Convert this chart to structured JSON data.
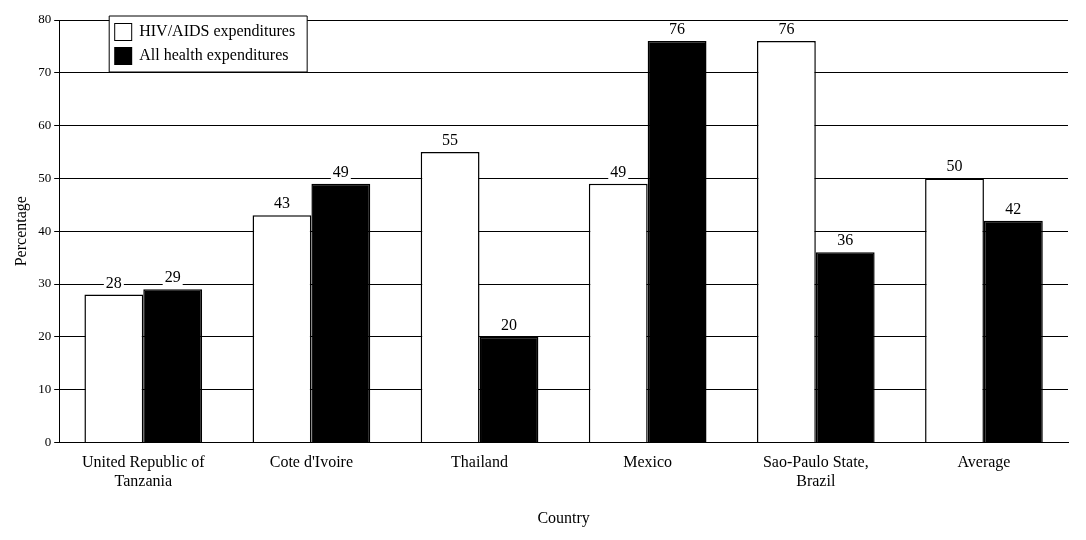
{
  "chart_data": {
    "type": "bar",
    "xlabel": "Country",
    "ylabel": "Percentage",
    "categories": [
      "United Republic of Tanzania",
      "Cote d'Ivoire",
      "Thailand",
      "Mexico",
      "Sao-Paulo State, Brazil",
      "Average"
    ],
    "series": [
      {
        "name": "HIV/AIDS expenditures",
        "color": "#ffffff",
        "values": [
          28,
          43,
          55,
          49,
          76,
          50
        ]
      },
      {
        "name": "All health expenditures",
        "color": "#000000",
        "values": [
          29,
          49,
          20,
          76,
          36,
          42
        ]
      }
    ],
    "ylim": [
      0,
      80
    ],
    "yticks": [
      0,
      10,
      20,
      30,
      40,
      50,
      60,
      70,
      80
    ],
    "grid": "y",
    "legend": "top left",
    "data_labels": true
  }
}
